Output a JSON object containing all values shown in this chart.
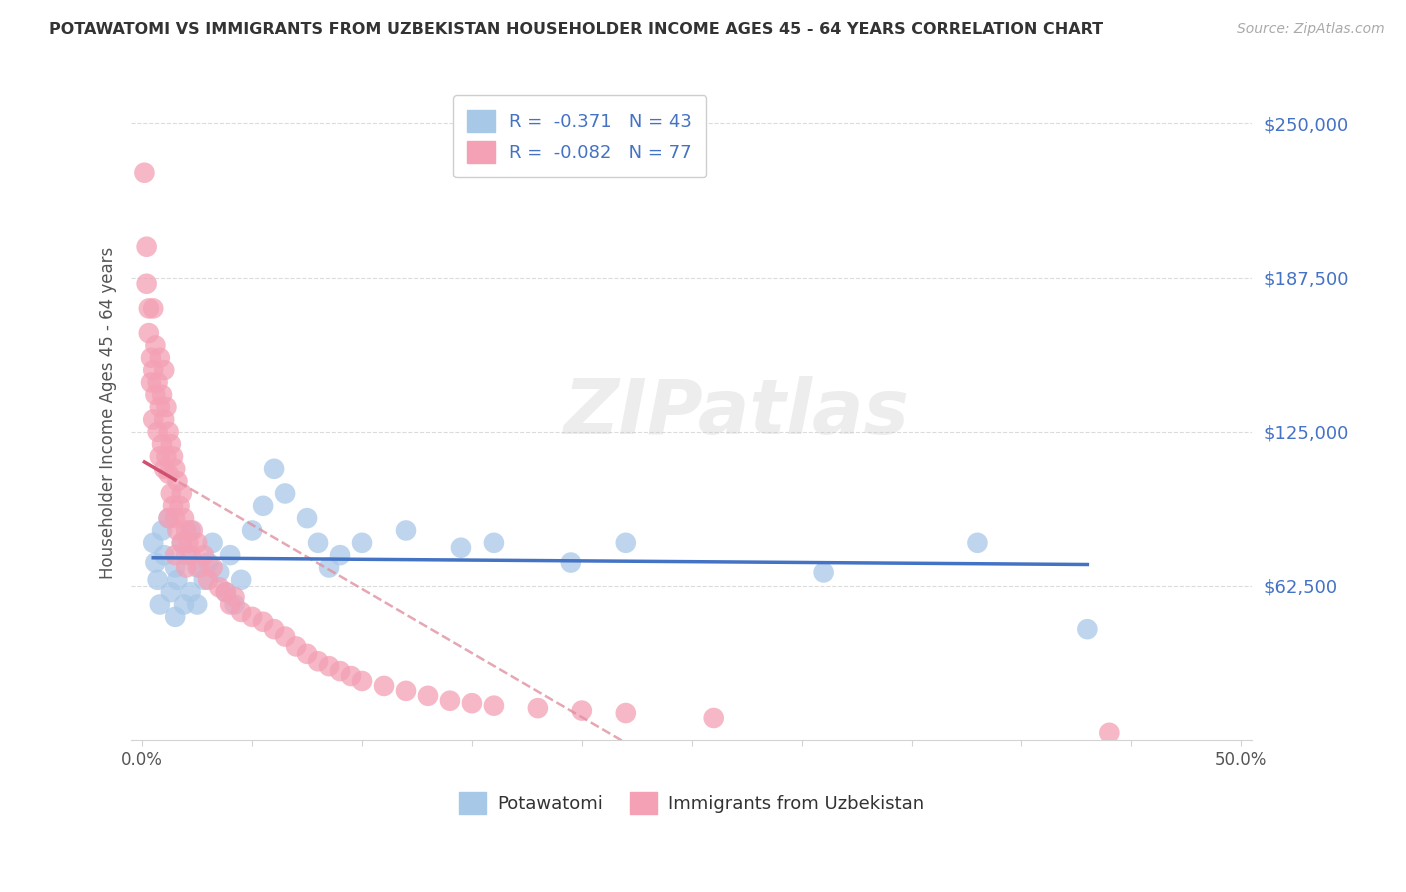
{
  "title": "POTAWATOMI VS IMMIGRANTS FROM UZBEKISTAN HOUSEHOLDER INCOME AGES 45 - 64 YEARS CORRELATION CHART",
  "source": "Source: ZipAtlas.com",
  "ylabel": "Householder Income Ages 45 - 64 years",
  "xlim": [
    -0.005,
    0.505
  ],
  "ylim": [
    0,
    265000
  ],
  "yticks": [
    62500,
    125000,
    187500,
    250000
  ],
  "ytick_labels": [
    "$62,500",
    "$125,000",
    "$187,500",
    "$250,000"
  ],
  "xticks": [
    0.0,
    0.05,
    0.1,
    0.15,
    0.2,
    0.25,
    0.3,
    0.35,
    0.4,
    0.45,
    0.5
  ],
  "xtick_labels": [
    "0.0%",
    "",
    "",
    "",
    "",
    "",
    "",
    "",
    "",
    "",
    "50.0%"
  ],
  "blue_color": "#a8c8e8",
  "pink_color": "#f4a0b5",
  "blue_line_color": "#4472c4",
  "pink_line_color": "#d05070",
  "pink_dash_color": "#e090a0",
  "r_blue": -0.371,
  "n_blue": 43,
  "r_pink": -0.082,
  "n_pink": 77,
  "legend_label_blue": "Potawatomi",
  "legend_label_pink": "Immigrants from Uzbekistan",
  "watermark": "ZIPatlas",
  "blue_scatter_x": [
    0.005,
    0.006,
    0.007,
    0.008,
    0.009,
    0.01,
    0.012,
    0.013,
    0.015,
    0.015,
    0.016,
    0.018,
    0.019,
    0.02,
    0.022,
    0.022,
    0.025,
    0.025,
    0.028,
    0.03,
    0.032,
    0.035,
    0.038,
    0.04,
    0.042,
    0.045,
    0.05,
    0.055,
    0.06,
    0.065,
    0.075,
    0.08,
    0.085,
    0.09,
    0.1,
    0.12,
    0.145,
    0.16,
    0.195,
    0.22,
    0.31,
    0.38,
    0.43
  ],
  "blue_scatter_y": [
    80000,
    72000,
    65000,
    55000,
    85000,
    75000,
    90000,
    60000,
    70000,
    50000,
    65000,
    80000,
    55000,
    75000,
    85000,
    60000,
    70000,
    55000,
    65000,
    72000,
    80000,
    68000,
    60000,
    75000,
    55000,
    65000,
    85000,
    95000,
    110000,
    100000,
    90000,
    80000,
    70000,
    75000,
    80000,
    85000,
    78000,
    80000,
    72000,
    80000,
    68000,
    80000,
    45000
  ],
  "pink_scatter_x": [
    0.001,
    0.002,
    0.002,
    0.003,
    0.003,
    0.004,
    0.004,
    0.005,
    0.005,
    0.005,
    0.006,
    0.006,
    0.007,
    0.007,
    0.008,
    0.008,
    0.008,
    0.009,
    0.009,
    0.01,
    0.01,
    0.01,
    0.011,
    0.011,
    0.012,
    0.012,
    0.012,
    0.013,
    0.013,
    0.014,
    0.014,
    0.015,
    0.015,
    0.015,
    0.016,
    0.016,
    0.017,
    0.018,
    0.018,
    0.019,
    0.02,
    0.02,
    0.021,
    0.022,
    0.023,
    0.025,
    0.026,
    0.028,
    0.03,
    0.032,
    0.035,
    0.038,
    0.04,
    0.042,
    0.045,
    0.05,
    0.055,
    0.06,
    0.065,
    0.07,
    0.075,
    0.08,
    0.085,
    0.09,
    0.095,
    0.1,
    0.11,
    0.12,
    0.13,
    0.14,
    0.15,
    0.16,
    0.18,
    0.2,
    0.22,
    0.26,
    0.44
  ],
  "pink_scatter_y": [
    230000,
    200000,
    185000,
    175000,
    165000,
    155000,
    145000,
    175000,
    150000,
    130000,
    160000,
    140000,
    145000,
    125000,
    155000,
    135000,
    115000,
    140000,
    120000,
    150000,
    130000,
    110000,
    135000,
    115000,
    125000,
    108000,
    90000,
    120000,
    100000,
    115000,
    95000,
    110000,
    90000,
    75000,
    105000,
    85000,
    95000,
    100000,
    80000,
    90000,
    85000,
    70000,
    80000,
    75000,
    85000,
    80000,
    70000,
    75000,
    65000,
    70000,
    62000,
    60000,
    55000,
    58000,
    52000,
    50000,
    48000,
    45000,
    42000,
    38000,
    35000,
    32000,
    30000,
    28000,
    26000,
    24000,
    22000,
    20000,
    18000,
    16000,
    15000,
    14000,
    13000,
    12000,
    11000,
    9000,
    3000
  ]
}
